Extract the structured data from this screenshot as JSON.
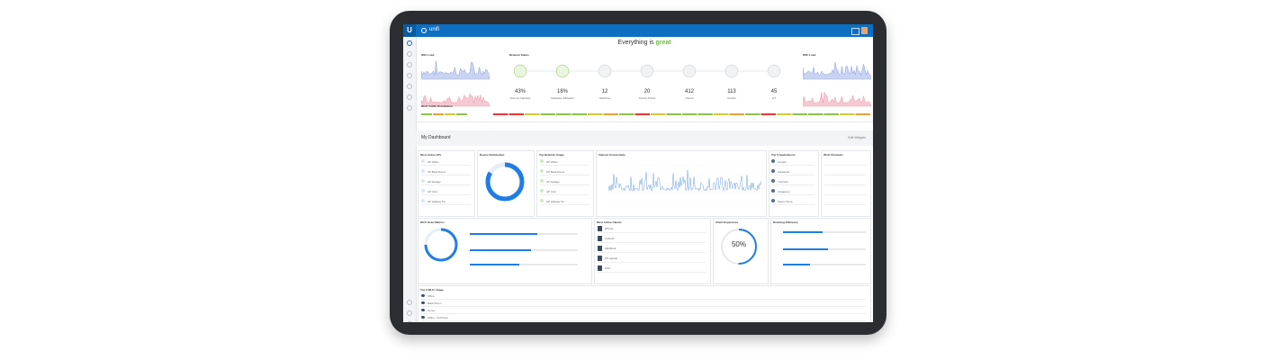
{
  "top_bar": {
    "brand": "unifi"
  },
  "header": {
    "title_prefix": "Everything is ",
    "title_status": "great"
  },
  "overview": {
    "left_card": "WiFi Load",
    "network_title": "Network Status",
    "right_card": "WiFi Load",
    "stats": [
      {
        "value": "43%",
        "label": "Internet Capacity"
      },
      {
        "value": "18%",
        "label": "Gateway Utilization"
      },
      {
        "value": "12",
        "label": "Switches"
      },
      {
        "value": "20",
        "label": "Access Points"
      },
      {
        "value": "412",
        "label": "Clients"
      },
      {
        "value": "113",
        "label": "Guests"
      },
      {
        "value": "45",
        "label": "IoT"
      }
    ],
    "traffic_title": "Wi-Fi Traffic Distribution"
  },
  "dashboard": {
    "title": "My Dashboard",
    "edit": "Edit Widgets"
  },
  "widgets": {
    "most_active_aps": {
      "title": "Most Active APs",
      "rows": [
        "AP Office",
        "AP Back Room",
        "AP Garage",
        "AP Yard",
        "AP Hallway Kit"
      ]
    },
    "device_distribution": {
      "title": "Device Distribution"
    },
    "top_network_usage": {
      "title": "Top Network Usage",
      "rows": [
        "AP Office",
        "AP Back Room",
        "AP Garage",
        "AP Yard",
        "AP Hallway Kit"
      ]
    },
    "internet_connectivity": {
      "title": "Internet Connectivity"
    },
    "top_applications": {
      "title": "Top 5 Applications",
      "rows": [
        "Google",
        "Facebook",
        "YouTube",
        "Instagram",
        "Steam Store"
      ]
    },
    "wifi_channels": {
      "title": "Wi-Fi Channels"
    },
    "wifi_scan_metrics": {
      "title": "Wi-Fi Scan Metrics"
    },
    "most_active_clients": {
      "title": "Most Active Clients",
      "rows": [
        "iPhone",
        "Android",
        "MacBook",
        "PC Laptop",
        "iPad"
      ]
    },
    "client_experience": {
      "title": "Client Experience",
      "value": "50%"
    },
    "roaming_efficiency": {
      "title": "Roaming Efficiency"
    },
    "top_wifi_usage": {
      "title": "Top 5 Wi-Fi Usage",
      "rows": [
        "Office",
        "Back Room",
        "Home",
        "Office - 2nd Floor"
      ]
    }
  }
}
